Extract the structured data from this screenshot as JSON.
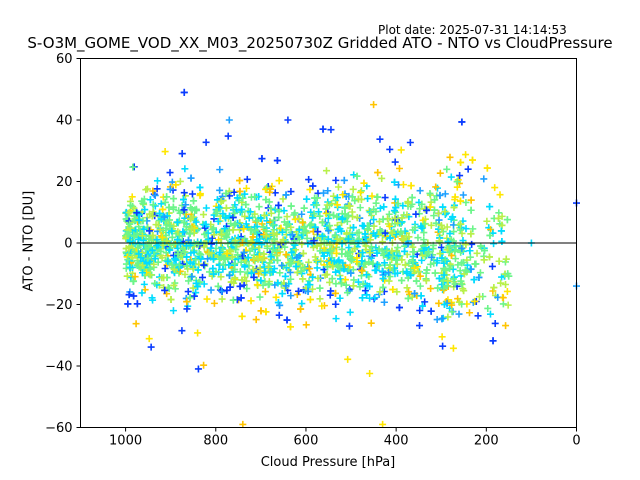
{
  "plot_date": "Plot date: 2025-07-31 14:14:53",
  "chart_data": {
    "type": "scatter",
    "title": "S-O3M_GOME_VOD_XX_M03_20250730Z Gridded ATO - NTO vs CloudPressure",
    "xlabel": "Cloud Pressure [hPa]",
    "ylabel": "ATO - NTO [DU]",
    "xlim": [
      1100,
      0
    ],
    "ylim": [
      -60,
      60
    ],
    "x_inverted": true,
    "xticks": [
      1000,
      800,
      600,
      400,
      200,
      0
    ],
    "yticks": [
      -60,
      -40,
      -20,
      0,
      20,
      40,
      60
    ],
    "reference_line_y": 0,
    "marker": "+",
    "grid": false,
    "colors": [
      "#0a3cff",
      "#1ea0ff",
      "#00dcff",
      "#6cf58a",
      "#b8f04a",
      "#ffe600",
      "#ffc400"
    ],
    "point_density_profile": {
      "x_range": [
        1000,
        150
      ],
      "core_band_y": [
        -20,
        20
      ],
      "extremes": [
        {
          "x": 450,
          "y": 45
        },
        {
          "x": 770,
          "y": 40
        },
        {
          "x": 640,
          "y": 40
        },
        {
          "x": 430,
          "y": -59
        },
        {
          "x": 740,
          "y": -59
        },
        {
          "x": 0,
          "y": 13
        },
        {
          "x": 0,
          "y": -14
        },
        {
          "x": 100,
          "y": 0
        }
      ]
    }
  }
}
